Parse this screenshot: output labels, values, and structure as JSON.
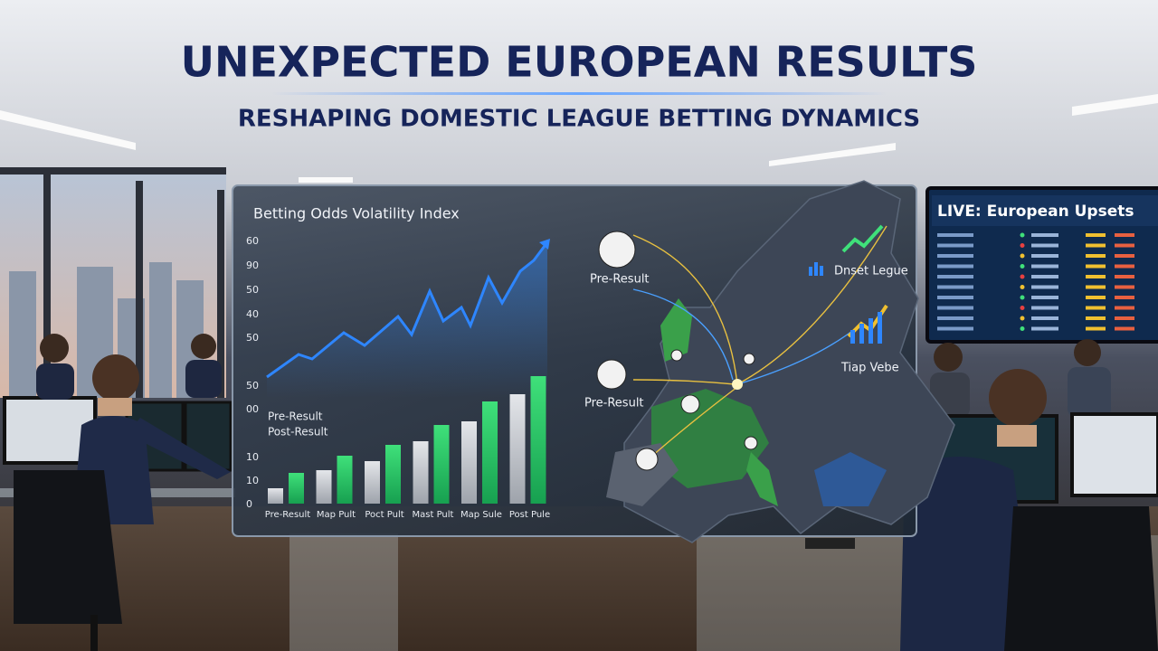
{
  "header": {
    "title": "UNEXPECTED EUROPEAN RESULTS",
    "subtitle": "RESHAPING DOMESTIC LEAGUE BETTING DYNAMICS"
  },
  "panel": {
    "chart_title": "Betting Odds Volatility Index",
    "y_labels": [
      "60",
      "90",
      "50",
      "40",
      "50",
      "50",
      "00",
      "10",
      "10",
      "0"
    ],
    "legend": [
      "Pre-Result",
      "Post-Result"
    ],
    "x_labels": [
      "Pre-Result",
      "Map Pult",
      "Poct Pult",
      "Mast Pult",
      "Map Sule",
      "Post Pule"
    ]
  },
  "map": {
    "labels": [
      "Pre-Result",
      "Pre-Result",
      "Dnset Legue",
      "Tiap Vebe"
    ]
  },
  "screen": {
    "title": "LIVE: European Upsets"
  }
}
